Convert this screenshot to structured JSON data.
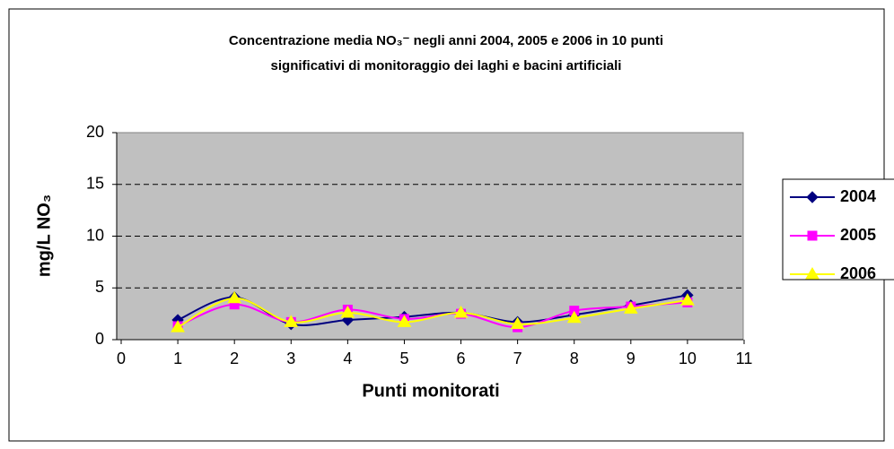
{
  "chart_data": {
    "type": "line",
    "title": [
      "Concentrazione media NO₃⁻ negli anni 2004, 2005 e 2006 in 10 punti",
      "significativi di monitoraggio dei laghi e bacini artificiali"
    ],
    "xlabel": "Punti monitorati",
    "ylabel": "mg/L NO₃",
    "x": [
      1,
      2,
      3,
      4,
      5,
      6,
      7,
      8,
      9,
      10
    ],
    "series": [
      {
        "name": "2004",
        "color": "#000080",
        "marker": "diamond",
        "values": [
          1.9,
          4.1,
          1.5,
          1.9,
          2.2,
          2.6,
          1.7,
          2.4,
          3.3,
          4.3
        ]
      },
      {
        "name": "2005",
        "color": "#ff00ff",
        "marker": "square",
        "values": [
          1.3,
          3.4,
          1.7,
          2.9,
          2.0,
          2.5,
          1.2,
          2.8,
          3.2,
          3.6
        ]
      },
      {
        "name": "2006",
        "color": "#ffff00",
        "marker": "triangle",
        "values": [
          1.2,
          4.0,
          1.7,
          2.6,
          1.7,
          2.6,
          1.5,
          2.1,
          3.0,
          3.8
        ]
      }
    ],
    "xlim": [
      0,
      11
    ],
    "xticks": [
      0,
      1,
      2,
      3,
      4,
      5,
      6,
      7,
      8,
      9,
      10,
      11
    ],
    "ylim": [
      0,
      20
    ],
    "yticks": [
      0,
      5,
      10,
      15,
      20
    ],
    "grid": true,
    "smooth": true,
    "legend": "right"
  }
}
